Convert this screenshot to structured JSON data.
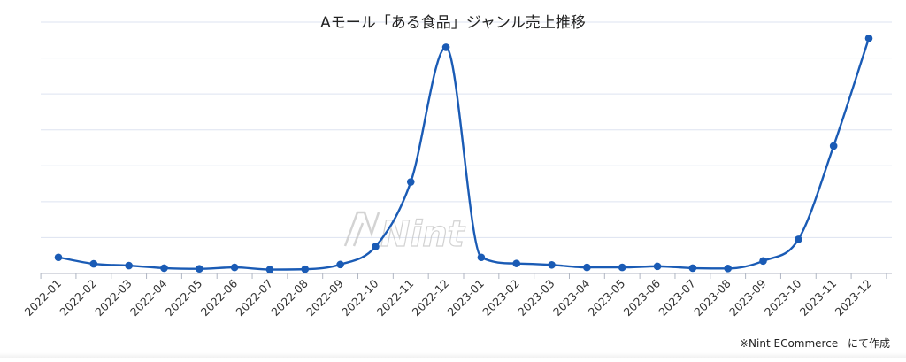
{
  "chart_data": {
    "type": "line",
    "title": "Aモール「ある食品」ジャンル売上推移",
    "categories": [
      "2022-01",
      "2022-02",
      "2022-03",
      "2022-04",
      "2022-05",
      "2022-06",
      "2022-07",
      "2022-08",
      "2022-09",
      "2022-10",
      "2022-11",
      "2022-12",
      "2023-01",
      "2023-02",
      "2023-03",
      "2023-04",
      "2023-05",
      "2023-06",
      "2023-07",
      "2023-08",
      "2023-09",
      "2023-10",
      "2023-11",
      "2023-12"
    ],
    "series": [
      {
        "values": [
          4.5,
          2.7,
          2.2,
          1.5,
          1.3,
          1.7,
          1.1,
          1.2,
          2.5,
          7.5,
          25.5,
          63.0,
          4.5,
          2.8,
          2.4,
          1.7,
          1.7,
          2.0,
          1.5,
          1.4,
          3.5,
          9.5,
          35.5,
          65.5
        ]
      }
    ],
    "ylim": [
      0,
      70
    ],
    "grid": true,
    "ytick_labels_visible": false,
    "line_color": "#1a5bb5",
    "grid_color": "#dde3f0",
    "axis_color": "#b0b6c3",
    "smooth": true
  },
  "watermark": "Nint",
  "credit": {
    "source": "※Nint ECommerce",
    "suffix": "にて作成"
  }
}
